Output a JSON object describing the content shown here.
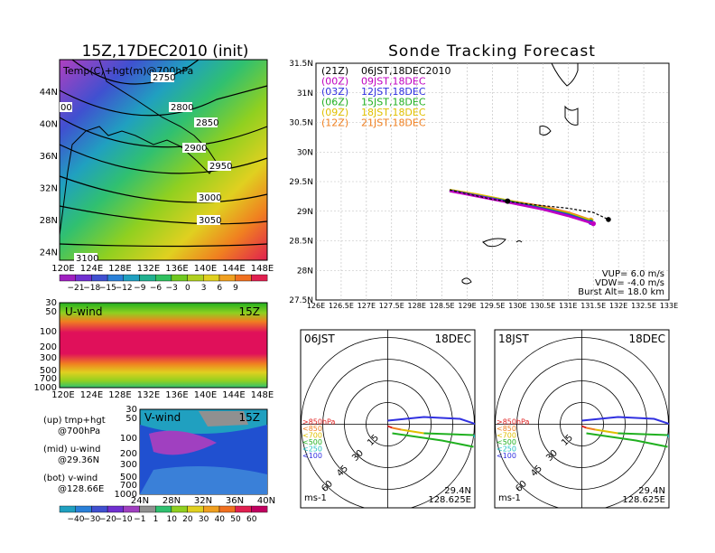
{
  "titles": {
    "left": "15Z,17DEC2010 (init)",
    "right": "Sonde Tracking Forecast"
  },
  "map700": {
    "label": "Temp(C)+hgt(m)@700hPa",
    "lat_ticks": [
      "44N",
      "40N",
      "36N",
      "32N",
      "28N",
      "24N"
    ],
    "lon_ticks": [
      "120E",
      "124E",
      "128E",
      "132E",
      "136E",
      "140E",
      "144E",
      "148E"
    ],
    "contour_labels": [
      "2750",
      "2800",
      "2850",
      "2900",
      "2950",
      "3000",
      "3050",
      "3100",
      "00"
    ],
    "colorbar": [
      "−21",
      "−18",
      "−15",
      "−12",
      "−9",
      "−6",
      "−3",
      "0",
      "3",
      "6",
      "9"
    ]
  },
  "uwind": {
    "label": "U-wind",
    "time": "15Z",
    "p_ticks": [
      "30",
      "50",
      "100",
      "200",
      "300",
      "500",
      "700",
      "1000"
    ],
    "x_ticks": [
      "120E",
      "124E",
      "128E",
      "132E",
      "136E",
      "140E",
      "144E",
      "148E"
    ]
  },
  "vwind": {
    "label": "V-wind",
    "time": "15Z",
    "p_ticks": [
      "30",
      "50",
      "100",
      "200",
      "300",
      "500",
      "700",
      "1000"
    ],
    "x_ticks": [
      "24N",
      "28N",
      "32N",
      "36N",
      "40N"
    ],
    "colorbar": [
      "−40",
      "−30",
      "−20",
      "−10",
      "−1",
      "1",
      "10",
      "20",
      "30",
      "40",
      "50",
      "60"
    ]
  },
  "legend_left": [
    {
      "a": "(up) tmp+hgt",
      "b": "@700hPa"
    },
    {
      "a": "(mid) u-wind",
      "b": "@29.36N"
    },
    {
      "a": "(bot) v-wind",
      "b": "@128.66E"
    }
  ],
  "colors": {
    "c00": "#000000",
    "c01": "#c000c0",
    "c02": "#3030e0",
    "c03": "#20b020",
    "c04": "#e0c000",
    "c05": "#f08020"
  },
  "chart_data": [
    {
      "type": "line",
      "name": "Sonde Tracking Forecast",
      "xlim": [
        126,
        133
      ],
      "ylim": [
        27.5,
        31.5
      ],
      "x_ticks": [
        "126E",
        "126.5E",
        "127E",
        "127.5E",
        "128E",
        "128.5E",
        "129E",
        "129.5E",
        "130E",
        "130.5E",
        "131E",
        "131.5E",
        "132E",
        "132.5E",
        "133E"
      ],
      "y_ticks": [
        "31.5N",
        "31N",
        "30.5N",
        "30N",
        "29.5N",
        "29N",
        "28.5N",
        "28N",
        "27.5N"
      ],
      "legend": [
        {
          "tag": "(21Z)",
          "text": "06JST,18DEC2010",
          "color": "#000000"
        },
        {
          "tag": "(00Z)",
          "text": "09JST,18DEC",
          "color": "#c000c0"
        },
        {
          "tag": "(03Z)",
          "text": "12JST,18DEC",
          "color": "#3030e0"
        },
        {
          "tag": "(06Z)",
          "text": "15JST,18DEC",
          "color": "#20b020"
        },
        {
          "tag": "(09Z)",
          "text": "18JST,18DEC",
          "color": "#e0c000"
        },
        {
          "tag": "(12Z)",
          "text": "21JST,18DEC",
          "color": "#f08020"
        }
      ],
      "series": [
        {
          "color": "#f08020",
          "points": [
            [
              128.65,
              29.36
            ],
            [
              129.2,
              29.28
            ],
            [
              129.8,
              29.18
            ],
            [
              130.5,
              29.08
            ],
            [
              131.0,
              28.98
            ],
            [
              131.45,
              28.85
            ]
          ]
        },
        {
          "color": "#e0c000",
          "points": [
            [
              128.65,
              29.36
            ],
            [
              129.2,
              29.28
            ],
            [
              129.8,
              29.18
            ],
            [
              130.5,
              29.06
            ],
            [
              131.0,
              28.96
            ],
            [
              131.45,
              28.84
            ]
          ]
        },
        {
          "color": "#20b020",
          "points": [
            [
              128.65,
              29.35
            ],
            [
              129.2,
              29.26
            ],
            [
              129.8,
              29.17
            ],
            [
              130.5,
              29.05
            ],
            [
              131.0,
              28.95
            ],
            [
              131.45,
              28.82
            ]
          ]
        },
        {
          "color": "#3030e0",
          "points": [
            [
              128.65,
              29.35
            ],
            [
              129.2,
              29.26
            ],
            [
              129.8,
              29.16
            ],
            [
              130.5,
              29.04
            ],
            [
              131.0,
              28.94
            ],
            [
              131.45,
              28.81
            ]
          ]
        },
        {
          "color": "#c000c0",
          "points": [
            [
              128.65,
              29.34
            ],
            [
              129.2,
              29.25
            ],
            [
              129.8,
              29.15
            ],
            [
              130.5,
              29.03
            ],
            [
              131.0,
              28.92
            ],
            [
              131.5,
              28.79
            ]
          ]
        },
        {
          "color": "#000000",
          "dashed": true,
          "points": [
            [
              128.65,
              29.36
            ],
            [
              129.5,
              29.2
            ],
            [
              130.2,
              29.12
            ],
            [
              131.0,
              29.05
            ],
            [
              131.5,
              28.98
            ],
            [
              131.8,
              28.86
            ]
          ]
        }
      ],
      "info": [
        "VUP=  6.0  m/s",
        "VDW= -4.0  m/s",
        "Burst Alt=  18.0  km"
      ]
    }
  ],
  "hodographs": [
    {
      "time": "06JST",
      "date": "18DEC",
      "units": "ms-1",
      "lat": "29.4N",
      "lon": "128.625E",
      "ring_labels": [
        "15",
        "30",
        "45",
        "60"
      ],
      "levels": [
        ">850hPa",
        "<850",
        "<700",
        "<500",
        "<250",
        "<100"
      ]
    },
    {
      "time": "18JST",
      "date": "18DEC",
      "units": "ms-1",
      "lat": "29.4N",
      "lon": "128.625E",
      "ring_labels": [
        "15",
        "30",
        "45",
        "60"
      ],
      "levels": [
        ">850hPa",
        "<850",
        "<700",
        "<500",
        "<250",
        "<100"
      ]
    }
  ]
}
